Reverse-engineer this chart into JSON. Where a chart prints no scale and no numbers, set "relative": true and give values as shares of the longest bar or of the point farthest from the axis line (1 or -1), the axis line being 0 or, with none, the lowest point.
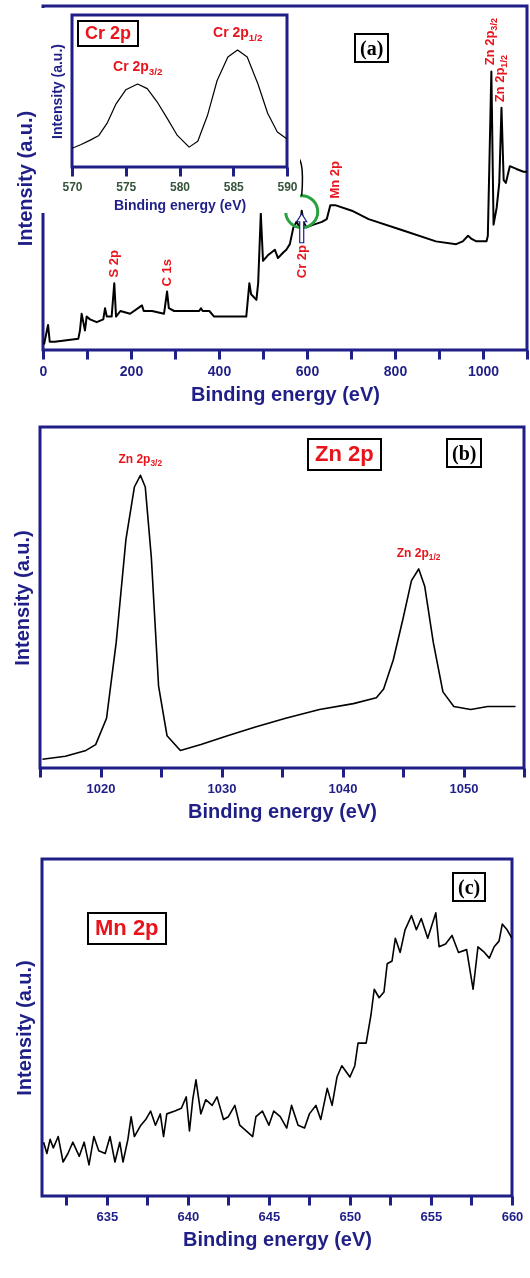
{
  "chart_data": [
    {
      "type": "line",
      "relative": true,
      "xlabel": "Binding energy (eV)",
      "ylabel": "Intensity (a.u.)",
      "xlim": [
        0,
        1100
      ],
      "xticks": [
        0,
        {
          "value": 100,
          "label": null
        },
        200,
        {
          "value": 300,
          "label": null
        },
        400,
        {
          "value": 500,
          "label": null
        },
        600,
        {
          "value": 700,
          "label": null
        },
        800,
        {
          "value": 900,
          "label": null
        },
        1000,
        {
          "value": 1100,
          "label": null
        }
      ],
      "annotations": [
        "(a)",
        {
          "text": "S 2p",
          "x": 162,
          "y": 0.24
        },
        {
          "text": "C 1s",
          "x": 282,
          "y": 0.21
        },
        {
          "text": "Cr 2p",
          "x": 588,
          "y": 0.5
        },
        {
          "text": "Mn 2p",
          "x": 664,
          "y": 0.52
        },
        {
          "text": "Zn 2p$_{3/2}$",
          "x": 1019,
          "y": 1
        },
        {
          "text": "Zn 2p$_{1/2}$",
          "x": 1042,
          "y": 0.87
        }
      ],
      "x": [
        2.3,
        11.5,
        15.3,
        26.7,
        80.2,
        84,
        87.8,
        91.6,
        95.4,
        99.2,
        106.9,
        122,
        137,
        141,
        145,
        156,
        162,
        166,
        176,
        198,
        225,
        229,
        248,
        275,
        282,
        286,
        298,
        355,
        359,
        363,
        378,
        389,
        462,
        469,
        473,
        485,
        489,
        495,
        500,
        511,
        527,
        534,
        546,
        553,
        561,
        569,
        576,
        584,
        588,
        592,
        599,
        615,
        634,
        645,
        653,
        664,
        702,
        740,
        817,
        893,
        939,
        954,
        966,
        973,
        985,
        1008,
        1011,
        1019,
        1024,
        1031,
        1037,
        1042,
        1047,
        1052,
        1061,
        1076,
        1092,
        1100
      ],
      "series": [
        {
          "color": "#000000",
          "values": [
            0.02,
            0.09,
            0.03,
            0.03,
            0.04,
            0.07,
            0.13,
            0.1,
            0.07,
            0.12,
            0.11,
            0.1,
            0.11,
            0.15,
            0.12,
            0.12,
            0.24,
            0.12,
            0.14,
            0.13,
            0.16,
            0.14,
            0.14,
            0.13,
            0.21,
            0.15,
            0.14,
            0.14,
            0.15,
            0.14,
            0.14,
            0.12,
            0.12,
            0.24,
            0.2,
            0.18,
            0.24,
            0.49,
            0.32,
            0.34,
            0.36,
            0.33,
            0.35,
            0.36,
            0.38,
            0.44,
            0.46,
            0.44,
            0.5,
            0.46,
            0.44,
            0.45,
            0.46,
            0.47,
            0.52,
            0.52,
            0.5,
            0.47,
            0.43,
            0.39,
            0.38,
            0.39,
            0.41,
            0.4,
            0.39,
            0.39,
            0.41,
            1,
            0.45,
            0.51,
            0.6,
            0.87,
            0.61,
            0.6,
            0.66,
            0.65,
            0.64,
            0.64
          ]
        }
      ]
    },
    {
      "type": "line",
      "relative": true,
      "title": "Cr 2p",
      "xlabel": "Binding energy (eV)",
      "ylabel": "Intensity (a.u.)",
      "xlim": [
        570,
        590
      ],
      "xticks": [
        570,
        575,
        580,
        585,
        590
      ],
      "annotations": [
        {
          "text": "Cr 2p$_{3/2}$",
          "x": 576.1,
          "y": 0.71
        },
        {
          "text": "Cr 2p$_{1/2}$",
          "x": 585.4,
          "y": 1
        }
      ],
      "x": [
        570,
        570.8,
        571.7,
        572.5,
        573.3,
        574.1,
        575,
        576.1,
        577,
        577.9,
        578.9,
        579.8,
        580.9,
        581.7,
        582.6,
        583.5,
        584.5,
        585.4,
        586.3,
        587.3,
        588.2,
        589.1,
        590
      ],
      "series": [
        {
          "color": "#000000",
          "values": [
            0.16,
            0.19,
            0.23,
            0.27,
            0.38,
            0.54,
            0.66,
            0.71,
            0.67,
            0.56,
            0.41,
            0.27,
            0.17,
            0.22,
            0.44,
            0.74,
            0.94,
            1,
            0.94,
            0.71,
            0.46,
            0.3,
            0.24
          ]
        }
      ]
    },
    {
      "type": "line",
      "relative": true,
      "title": "Zn 2p",
      "xlabel": "Binding energy (eV)",
      "ylabel": "Intensity (a.u.)",
      "xlim": [
        1015,
        1055
      ],
      "xticks": [
        {
          "value": 1015,
          "label": null
        },
        1020,
        {
          "value": 1025,
          "label": null
        },
        1030,
        {
          "value": 1035,
          "label": null
        },
        1040,
        {
          "value": 1045,
          "label": null
        },
        1050,
        {
          "value": 1055,
          "label": null
        }
      ],
      "annotations": [
        "(b)",
        {
          "text": "Zn 2p$_{3/2}$",
          "x": 1023.3,
          "y": 1
        },
        {
          "text": "Zn 2p$_{1/2}$",
          "x": 1046.3,
          "y": 0.68
        }
      ],
      "x": [
        1015.2,
        1017.1,
        1018.8,
        1019.6,
        1020.5,
        1021.3,
        1022.1,
        1022.8,
        1023.3,
        1023.7,
        1024.2,
        1024.8,
        1025.5,
        1026.6,
        1028.3,
        1030.5,
        1032.8,
        1035.3,
        1038.1,
        1040.9,
        1042.8,
        1043.4,
        1044.2,
        1045,
        1045.7,
        1046.3,
        1046.8,
        1047.5,
        1048.3,
        1049.2,
        1050.6,
        1052,
        1053.3,
        1054.3
      ],
      "series": [
        {
          "color": "#000000",
          "values": [
            0.03,
            0.04,
            0.06,
            0.08,
            0.17,
            0.43,
            0.78,
            0.96,
            1,
            0.96,
            0.72,
            0.28,
            0.11,
            0.06,
            0.08,
            0.11,
            0.14,
            0.17,
            0.2,
            0.22,
            0.24,
            0.27,
            0.37,
            0.51,
            0.64,
            0.68,
            0.62,
            0.43,
            0.26,
            0.21,
            0.2,
            0.21,
            0.21,
            0.21
          ]
        }
      ]
    },
    {
      "type": "line",
      "relative": true,
      "title": "Mn 2p",
      "xlabel": "Binding energy (eV)",
      "ylabel": "Intensity (a.u.)",
      "xlim": [
        631,
        660
      ],
      "xticks": [
        {
          "value": 632.5,
          "label": null
        },
        635,
        {
          "value": 637.5,
          "label": null
        },
        640,
        {
          "value": 642.5,
          "label": null
        },
        645,
        {
          "value": 647.5,
          "label": null
        },
        650,
        {
          "value": 652.5,
          "label": null
        },
        655,
        {
          "value": 657.5,
          "label": null
        },
        660
      ],
      "annotations": [
        "(c)"
      ],
      "x": [
        631.1,
        631.3,
        631.5,
        631.7,
        632,
        632.3,
        632.6,
        632.9,
        633.3,
        633.6,
        633.9,
        634.2,
        634.5,
        634.9,
        635.2,
        635.5,
        635.8,
        636,
        636.3,
        636.5,
        636.7,
        637.1,
        637.4,
        637.7,
        638,
        638.3,
        638.5,
        638.7,
        639.2,
        639.6,
        639.9,
        640.1,
        640.3,
        640.5,
        640.8,
        641.1,
        641.5,
        641.8,
        642.2,
        642.5,
        642.9,
        643.2,
        643.6,
        644,
        644.2,
        644.6,
        645,
        645.3,
        645.7,
        646.1,
        646.4,
        646.8,
        647.2,
        647.5,
        647.9,
        648.2,
        648.6,
        648.9,
        649.2,
        649.5,
        650,
        650.3,
        650.5,
        650.8,
        651,
        651.3,
        651.5,
        651.8,
        652.1,
        652.3,
        652.6,
        652.8,
        653.1,
        653.4,
        653.8,
        654.1,
        654.4,
        654.8,
        655.3,
        655.5,
        655.9,
        656.3,
        656.7,
        657.2,
        657.6,
        657.9,
        658.3,
        658.6,
        658.9,
        659.2,
        659.4,
        659.7,
        660
      ],
      "series": [
        {
          "color": "#000000",
          "values": [
            0.19,
            0.15,
            0.2,
            0.17,
            0.21,
            0.12,
            0.15,
            0.19,
            0.14,
            0.19,
            0.11,
            0.21,
            0.16,
            0.15,
            0.21,
            0.12,
            0.19,
            0.12,
            0.2,
            0.28,
            0.21,
            0.25,
            0.27,
            0.3,
            0.25,
            0.29,
            0.21,
            0.29,
            0.3,
            0.31,
            0.35,
            0.23,
            0.34,
            0.41,
            0.29,
            0.34,
            0.32,
            0.35,
            0.27,
            0.28,
            0.32,
            0.25,
            0.23,
            0.21,
            0.28,
            0.3,
            0.25,
            0.3,
            0.28,
            0.24,
            0.32,
            0.25,
            0.24,
            0.29,
            0.32,
            0.27,
            0.38,
            0.32,
            0.42,
            0.46,
            0.42,
            0.46,
            0.54,
            0.54,
            0.54,
            0.64,
            0.73,
            0.7,
            0.72,
            0.82,
            0.83,
            0.91,
            0.86,
            0.94,
            0.99,
            0.94,
            0.98,
            0.91,
            1,
            0.88,
            0.89,
            0.92,
            0.86,
            0.87,
            0.73,
            0.88,
            0.86,
            0.84,
            0.88,
            0.9,
            0.96,
            0.94,
            0.91
          ]
        }
      ]
    }
  ]
}
